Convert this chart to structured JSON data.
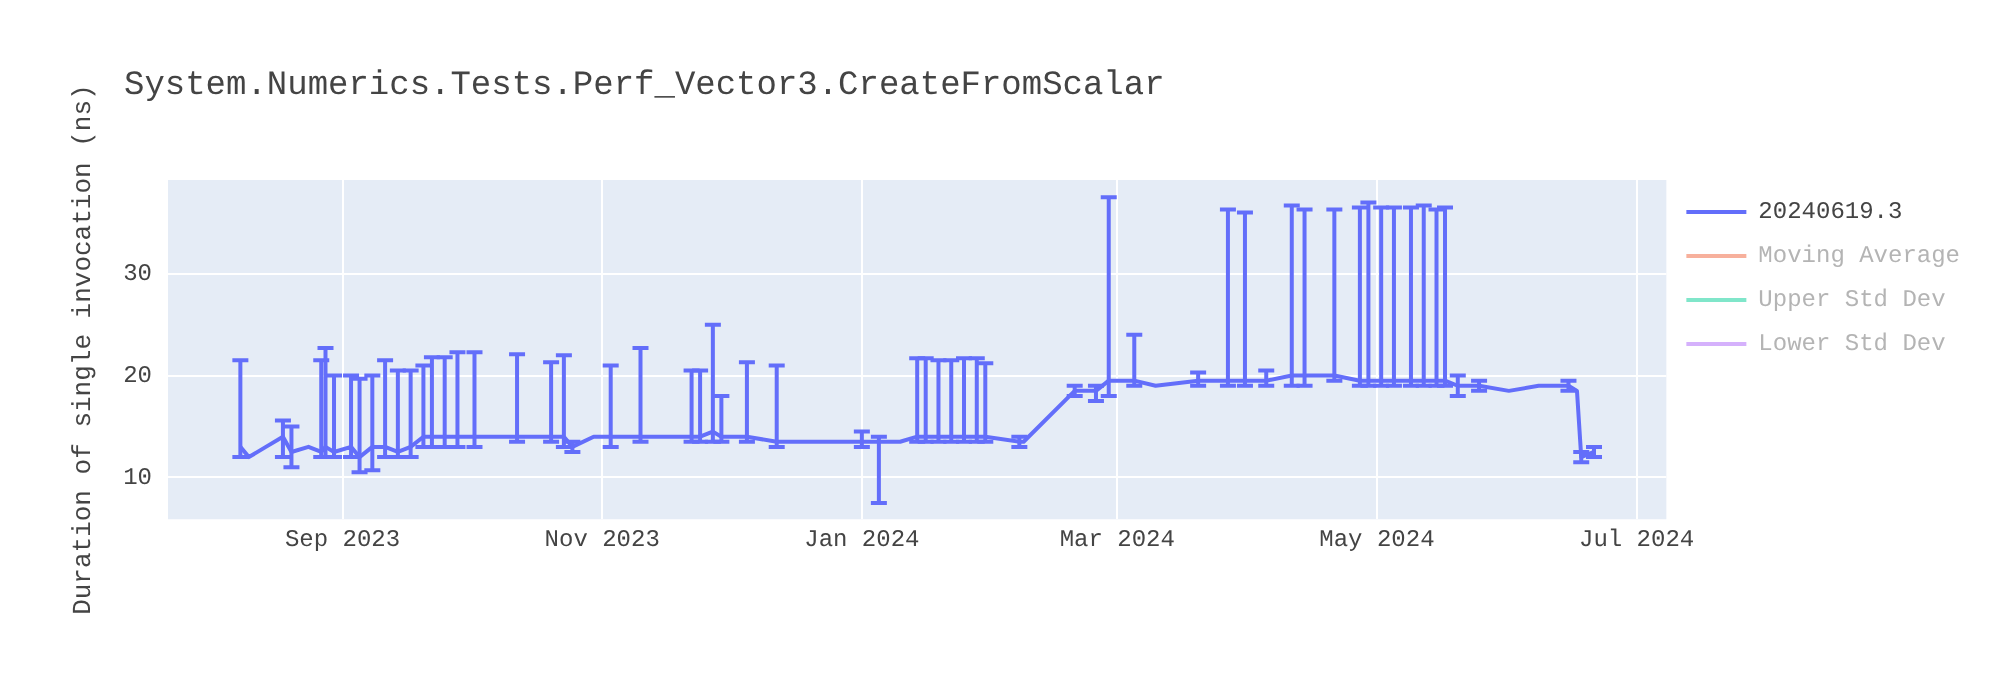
{
  "chart_data": {
    "type": "line",
    "title": "System.Numerics.Tests.Perf_Vector3.CreateFromScalar",
    "ylabel": "Duration of single invocation (ns)",
    "x": [
      "2023-08-08",
      "2023-08-10",
      "2023-08-14",
      "2023-08-18",
      "2023-08-20",
      "2023-08-24",
      "2023-08-27",
      "2023-08-28",
      "2023-08-30",
      "2023-09-03",
      "2023-09-05",
      "2023-09-08",
      "2023-09-11",
      "2023-09-14",
      "2023-09-17",
      "2023-09-20",
      "2023-09-22",
      "2023-09-25",
      "2023-09-28",
      "2023-10-02",
      "2023-10-07",
      "2023-10-12",
      "2023-10-20",
      "2023-10-23",
      "2023-10-25",
      "2023-10-30",
      "2023-11-03",
      "2023-11-10",
      "2023-11-15",
      "2023-11-22",
      "2023-11-24",
      "2023-11-27",
      "2023-11-29",
      "2023-12-05",
      "2023-12-12",
      "2023-12-20",
      "2024-01-01",
      "2024-01-05",
      "2024-01-10",
      "2024-01-14",
      "2024-01-16",
      "2024-01-19",
      "2024-01-22",
      "2024-01-25",
      "2024-01-28",
      "2024-01-30",
      "2024-02-07",
      "2024-02-08",
      "2024-02-20",
      "2024-02-25",
      "2024-02-28",
      "2024-03-05",
      "2024-03-10",
      "2024-03-20",
      "2024-03-27",
      "2024-03-31",
      "2024-04-05",
      "2024-04-11",
      "2024-04-14",
      "2024-04-21",
      "2024-04-27",
      "2024-04-29",
      "2024-05-02",
      "2024-05-05",
      "2024-05-09",
      "2024-05-12",
      "2024-05-15",
      "2024-05-17",
      "2024-05-20",
      "2024-05-25",
      "2024-06-01",
      "2024-06-08",
      "2024-06-15",
      "2024-06-17",
      "2024-06-18",
      "2024-06-21"
    ],
    "series": [
      {
        "name": "20240619.3",
        "color": "#636efa",
        "values": [
          13,
          12,
          13,
          14,
          12.5,
          13,
          12.5,
          13,
          12.5,
          13,
          12,
          13,
          13,
          12.5,
          13,
          14,
          14,
          14,
          14,
          14,
          14,
          14,
          14,
          14,
          13,
          14,
          14,
          14,
          14,
          14,
          14,
          14.5,
          14,
          14,
          13.5,
          13.5,
          13.5,
          13.5,
          13.5,
          14,
          14,
          14,
          14,
          14,
          14,
          14,
          13.5,
          13.5,
          18.5,
          18.5,
          19.5,
          19.5,
          19,
          19.5,
          19.5,
          19.5,
          19.5,
          20,
          20,
          20,
          19.5,
          19.5,
          19.5,
          19.5,
          19.5,
          19.5,
          19.5,
          19.5,
          19,
          19,
          18.5,
          19,
          19,
          18.5,
          12,
          12.5
        ],
        "errors": [
          [
            12,
            21.5
          ],
          null,
          null,
          [
            12,
            15.6
          ],
          [
            11,
            15
          ],
          null,
          [
            12,
            21.5
          ],
          [
            12,
            22.7
          ],
          [
            12,
            20
          ],
          [
            12,
            20
          ],
          [
            10.5,
            19.7
          ],
          [
            10.7,
            20
          ],
          [
            12,
            21.5
          ],
          [
            12,
            20.5
          ],
          [
            12,
            20.5
          ],
          [
            13,
            21
          ],
          [
            13,
            21.8
          ],
          [
            13,
            21.8
          ],
          [
            13,
            22.3
          ],
          [
            13,
            22.3
          ],
          null,
          [
            13.5,
            22.1
          ],
          [
            13.5,
            21.3
          ],
          [
            13,
            22
          ],
          [
            12.5,
            13.5
          ],
          null,
          [
            13,
            21
          ],
          [
            13.5,
            22.7
          ],
          null,
          [
            13.5,
            20.5
          ],
          [
            13.5,
            20.5
          ],
          [
            13.5,
            25
          ],
          [
            13.5,
            18
          ],
          [
            13.5,
            21.3
          ],
          [
            13,
            21
          ],
          null,
          [
            13,
            14.5
          ],
          [
            7.5,
            14
          ],
          null,
          [
            13.5,
            21.7
          ],
          [
            13.5,
            21.7
          ],
          [
            13.5,
            21.5
          ],
          [
            13.5,
            21.5
          ],
          [
            13.5,
            21.7
          ],
          [
            13.5,
            21.7
          ],
          [
            13.5,
            21.2
          ],
          [
            13,
            14
          ],
          null,
          [
            18,
            19
          ],
          [
            17.5,
            19
          ],
          [
            18,
            37.5
          ],
          [
            19,
            24
          ],
          null,
          [
            19,
            20.3
          ],
          [
            19,
            36.3
          ],
          [
            19,
            36
          ],
          [
            19,
            20.5
          ],
          [
            19,
            36.7
          ],
          [
            19,
            36.3
          ],
          [
            19.5,
            36.3
          ],
          [
            19,
            36.5
          ],
          [
            19,
            37
          ],
          [
            19,
            36.5
          ],
          [
            19,
            36.5
          ],
          [
            19,
            36.5
          ],
          [
            19,
            36.7
          ],
          [
            19,
            36.3
          ],
          [
            19,
            36.5
          ],
          [
            18,
            20
          ],
          [
            18.5,
            19.5
          ],
          null,
          null,
          [
            18.5,
            19.5
          ],
          null,
          [
            11.5,
            12.5
          ],
          [
            12,
            13
          ]
        ]
      },
      {
        "name": "Moving Average",
        "color": "#f7b09c",
        "values": [
          null,
          null,
          null,
          null,
          null,
          null,
          null,
          null,
          null,
          null,
          null,
          null,
          null,
          null,
          null,
          null,
          null,
          null,
          null,
          null,
          null,
          null,
          null,
          null,
          null,
          null,
          null,
          null,
          null,
          null,
          null,
          null,
          null,
          null,
          null,
          null,
          null,
          null,
          null,
          null,
          null,
          null,
          null,
          null,
          null,
          null,
          null,
          null,
          null,
          null,
          null,
          null,
          null,
          null,
          null,
          null,
          null,
          null,
          null,
          null,
          null,
          null,
          null,
          null,
          null,
          null,
          null,
          null,
          null,
          null,
          null,
          null,
          null,
          null,
          null,
          null
        ]
      },
      {
        "name": "Upper Std Dev",
        "color": "#80e6ca",
        "values": [
          null,
          null,
          null,
          null,
          null,
          null,
          null,
          null,
          null,
          null,
          null,
          null,
          null,
          null,
          null,
          null,
          null,
          null,
          null,
          null,
          null,
          null,
          null,
          null,
          null,
          null,
          null,
          null,
          null,
          null,
          null,
          null,
          null,
          null,
          null,
          null,
          null,
          null,
          null,
          null,
          null,
          null,
          null,
          null,
          null,
          null,
          null,
          null,
          null,
          null,
          null,
          null,
          null,
          null,
          null,
          null,
          null,
          null,
          null,
          null,
          null,
          null,
          null,
          null,
          null,
          null,
          null,
          null,
          null,
          null,
          null,
          null,
          null,
          null,
          null,
          null
        ]
      },
      {
        "name": "Lower Std Dev",
        "color": "#d5b1fc",
        "values": [
          null,
          null,
          null,
          null,
          null,
          null,
          null,
          null,
          null,
          null,
          null,
          null,
          null,
          null,
          null,
          null,
          null,
          null,
          null,
          null,
          null,
          null,
          null,
          null,
          null,
          null,
          null,
          null,
          null,
          null,
          null,
          null,
          null,
          null,
          null,
          null,
          null,
          null,
          null,
          null,
          null,
          null,
          null,
          null,
          null,
          null,
          null,
          null,
          null,
          null,
          null,
          null,
          null,
          null,
          null,
          null,
          null,
          null,
          null,
          null,
          null,
          null,
          null,
          null,
          null,
          null,
          null,
          null,
          null,
          null,
          null,
          null,
          null,
          null,
          null,
          null
        ]
      }
    ],
    "xlim": [
      "2023-07-22",
      "2024-07-08"
    ],
    "xticks": [
      {
        "value": "2023-09-01",
        "label": "Sep 2023"
      },
      {
        "value": "2023-11-01",
        "label": "Nov 2023"
      },
      {
        "value": "2024-01-01",
        "label": "Jan 2024"
      },
      {
        "value": "2024-03-01",
        "label": "Mar 2024"
      },
      {
        "value": "2024-05-01",
        "label": "May 2024"
      },
      {
        "value": "2024-07-01",
        "label": "Jul 2024"
      }
    ],
    "ylim": [
      5.9,
      39.2
    ],
    "yticks": [
      10,
      20,
      30
    ],
    "grid": true,
    "legend": "top right",
    "line_style": "solid"
  }
}
